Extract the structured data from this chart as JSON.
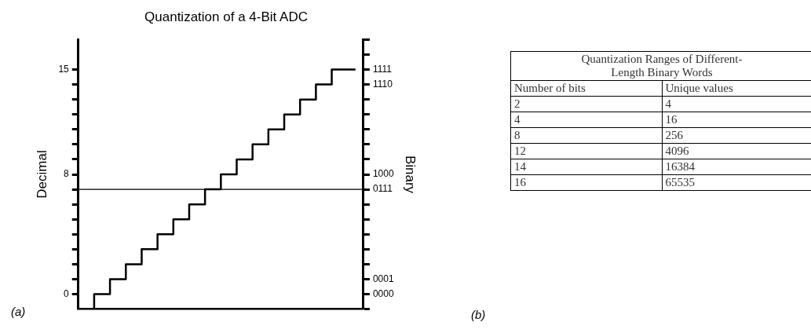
{
  "chart_data": [
    {
      "type": "step",
      "title": "Quantization of a 4-Bit ADC",
      "ylabel": "Decimal",
      "y2label": "Binary",
      "categories": [
        null,
        null,
        null,
        null,
        null,
        null,
        null,
        null,
        null,
        null,
        null,
        null,
        null,
        null,
        null,
        null,
        null,
        null
      ],
      "values": [
        -1,
        0,
        1,
        2,
        3,
        4,
        5,
        6,
        7,
        8,
        9,
        10,
        11,
        12,
        13,
        14,
        15,
        15
      ],
      "color": "#000000",
      "ylim": [
        -1,
        17
      ],
      "yticks": [
        0,
        {
          "value": 1,
          "label": null
        },
        {
          "value": 2,
          "label": null
        },
        {
          "value": 3,
          "label": null
        },
        {
          "value": 4,
          "label": null
        },
        {
          "value": 5,
          "label": null
        },
        {
          "value": 6,
          "label": null
        },
        {
          "value": 7,
          "label": null
        },
        8,
        {
          "value": 9,
          "label": null
        },
        {
          "value": 10,
          "label": null
        },
        {
          "value": 11,
          "label": null
        },
        {
          "value": 12,
          "label": null
        },
        {
          "value": 13,
          "label": null
        },
        {
          "value": 14,
          "label": null
        },
        15
      ],
      "y2_categories": [
        null,
        null,
        "1111",
        "1110",
        null,
        null,
        null,
        null,
        null,
        "1000",
        "0111",
        null,
        null,
        null,
        null,
        null,
        "0001",
        "0000",
        null
      ],
      "ref_lines": [
        {
          "axis": "y",
          "value": 7,
          "color": "#000000"
        }
      ],
      "grid": false,
      "legend": false,
      "marker": "none",
      "line_style": "solid",
      "annotations": [
        "(a)"
      ]
    },
    {
      "type": "other",
      "title": "Quantization Ranges of Different-Length Binary Words",
      "xlabel": "Number of bits",
      "ylabel": "Unique values",
      "categories": [
        "2",
        "4",
        "8",
        "12",
        "14",
        "16"
      ],
      "values": [
        4,
        16,
        256,
        4096,
        16384,
        65535
      ],
      "data_labels": true,
      "annotations": [
        "(b)"
      ]
    }
  ]
}
